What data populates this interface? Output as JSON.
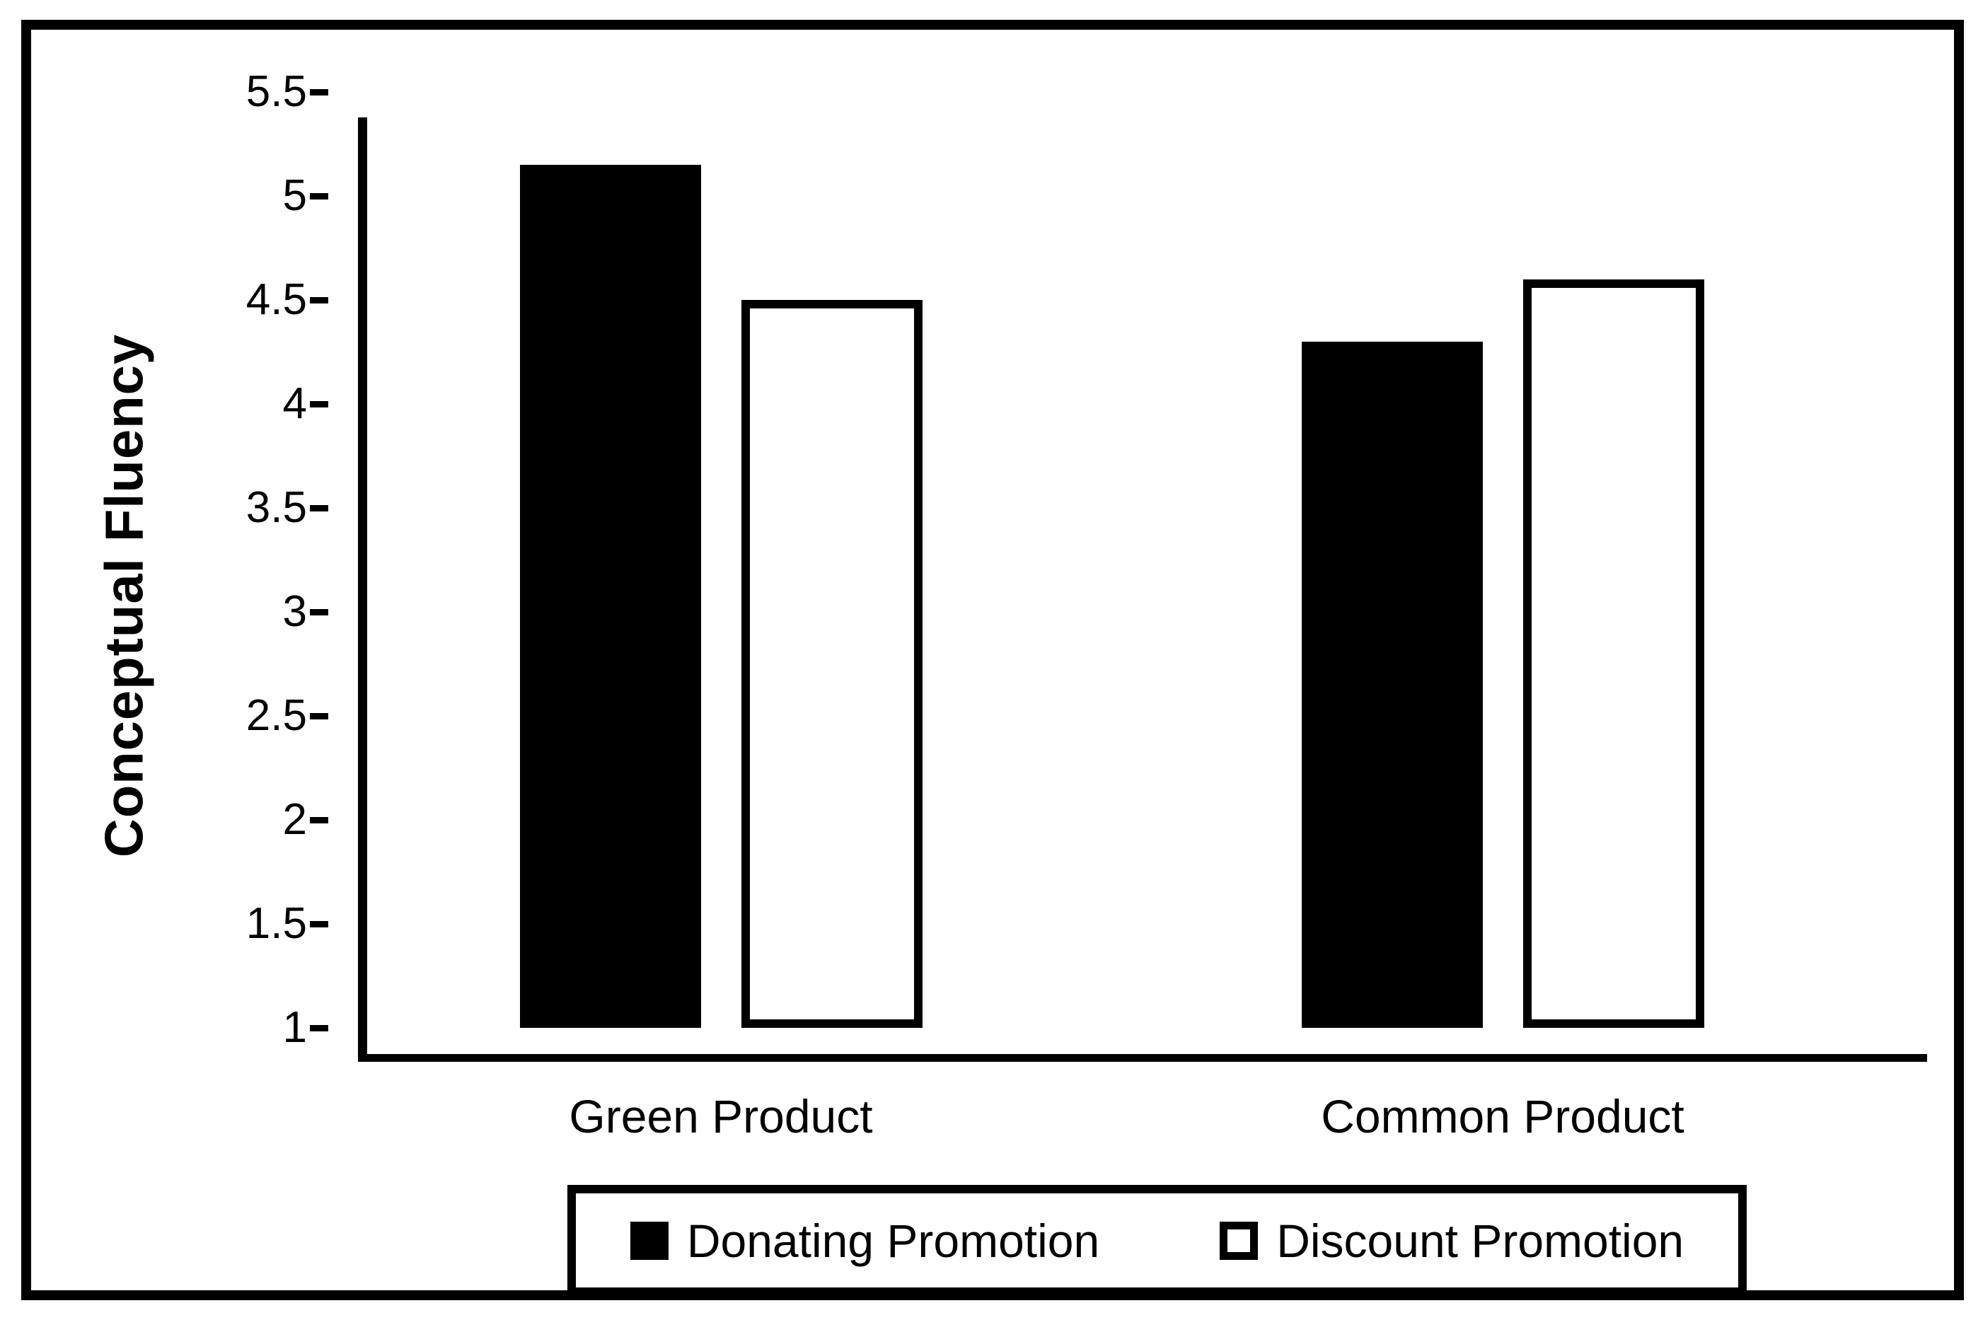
{
  "chart_data": {
    "type": "bar",
    "title": "",
    "categories": [
      "Green Product",
      "Common Product"
    ],
    "series": [
      {
        "name": "Donating Promotion",
        "fill": "black",
        "values": [
          5.15,
          4.3
        ]
      },
      {
        "name": "Discount Promotion",
        "fill": "white",
        "values": [
          4.5,
          4.6
        ]
      }
    ],
    "xlabel": "",
    "ylabel": "Conceptual Fluency",
    "ylim": [
      1,
      5.5
    ],
    "ytick_step": 0.5,
    "yticks": [
      "5.5",
      "5",
      "4.5",
      "4",
      "3.5",
      "3",
      "2.5",
      "2",
      "1.5",
      "1"
    ],
    "grid": "off",
    "legend_position": "bottom-boxed",
    "colors": {
      "donating_fill": "#000000",
      "discount_fill": "#ffffff",
      "outline": "#000000",
      "background": "#ffffff"
    }
  }
}
